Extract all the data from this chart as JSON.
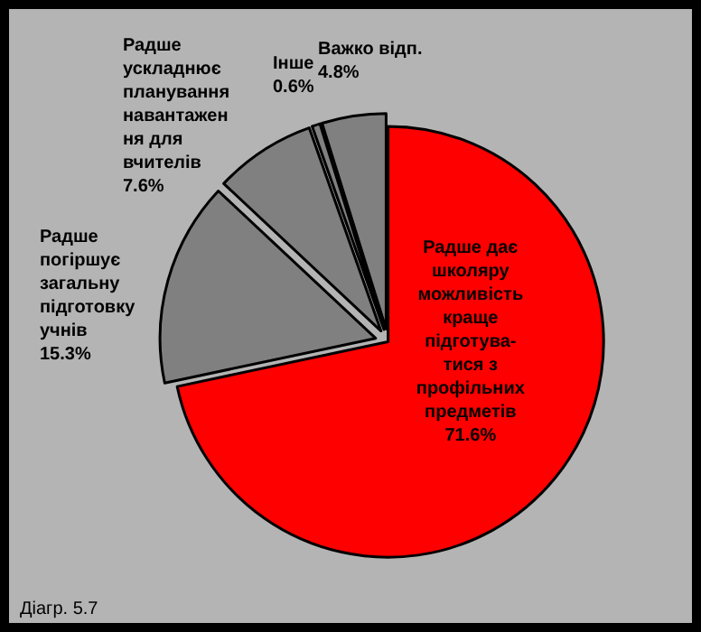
{
  "chart_data": {
    "type": "pie",
    "categories": [
      "Радше дає\nшколяру\nможливість\nкраще\nпідготува-\nтися з\nпрофільних\nпредметів",
      "Радше\nпогіршує\nзагальну\nпідготовку\nучнів",
      "Радше\nускладнює\nпланування\nнавантажен\nня для\nвчителів",
      "Інше",
      "Важко відп."
    ],
    "values": [
      71.6,
      15.3,
      7.6,
      0.6,
      4.8
    ],
    "value_labels": [
      "71.6%",
      "15.3%",
      "7.6%",
      "0.6%",
      "4.8%"
    ],
    "colors": [
      "#ff0000",
      "#808080",
      "#808080",
      "#808080",
      "#808080"
    ],
    "legend": false,
    "annotations": [
      "Діагр. 5.7"
    ]
  }
}
